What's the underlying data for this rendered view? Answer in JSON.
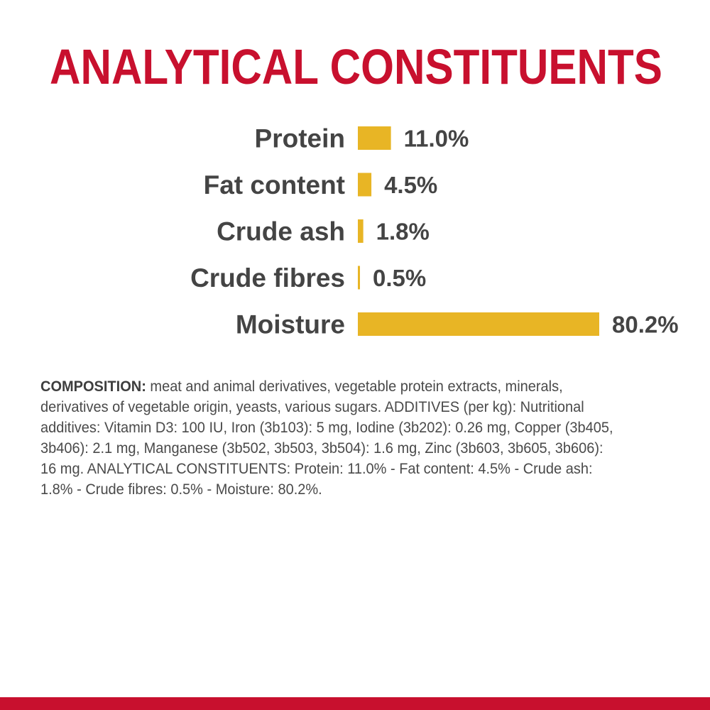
{
  "title": "ANALYTICAL CONSTITUENTS",
  "colors": {
    "title": "#c8102e",
    "bar": "#e8b525",
    "text": "#444444",
    "bottom_bar": "#c8102e"
  },
  "chart_data": {
    "type": "bar",
    "orientation": "horizontal",
    "categories": [
      "Protein",
      "Fat content",
      "Crude ash",
      "Crude fibres",
      "Moisture"
    ],
    "values": [
      11.0,
      4.5,
      1.8,
      0.5,
      80.2
    ],
    "value_labels": [
      "11.0%",
      "4.5%",
      "1.8%",
      "0.5%",
      "80.2%"
    ],
    "unit": "%",
    "title": "ANALYTICAL CONSTITUENTS",
    "xlabel": "",
    "ylabel": "",
    "grid": false,
    "legend": "none"
  },
  "composition": {
    "label": "COMPOSITION:",
    "text": " meat and animal derivatives, vegetable protein extracts, minerals, derivatives of vegetable origin, yeasts, various sugars. ADDITIVES (per kg): Nutritional additives: Vitamin D3: 100 IU, Iron (3b103): 5 mg, Iodine (3b202): 0.26 mg, Copper (3b405, 3b406): 2.1 mg, Manganese (3b502, 3b503, 3b504): 1.6 mg, Zinc (3b603, 3b605, 3b606): 16 mg. ANALYTICAL CONSTITUENTS: Protein: 11.0% - Fat content: 4.5% - Crude ash: 1.8% - Crude fibres: 0.5% - Moisture: 80.2%."
  }
}
